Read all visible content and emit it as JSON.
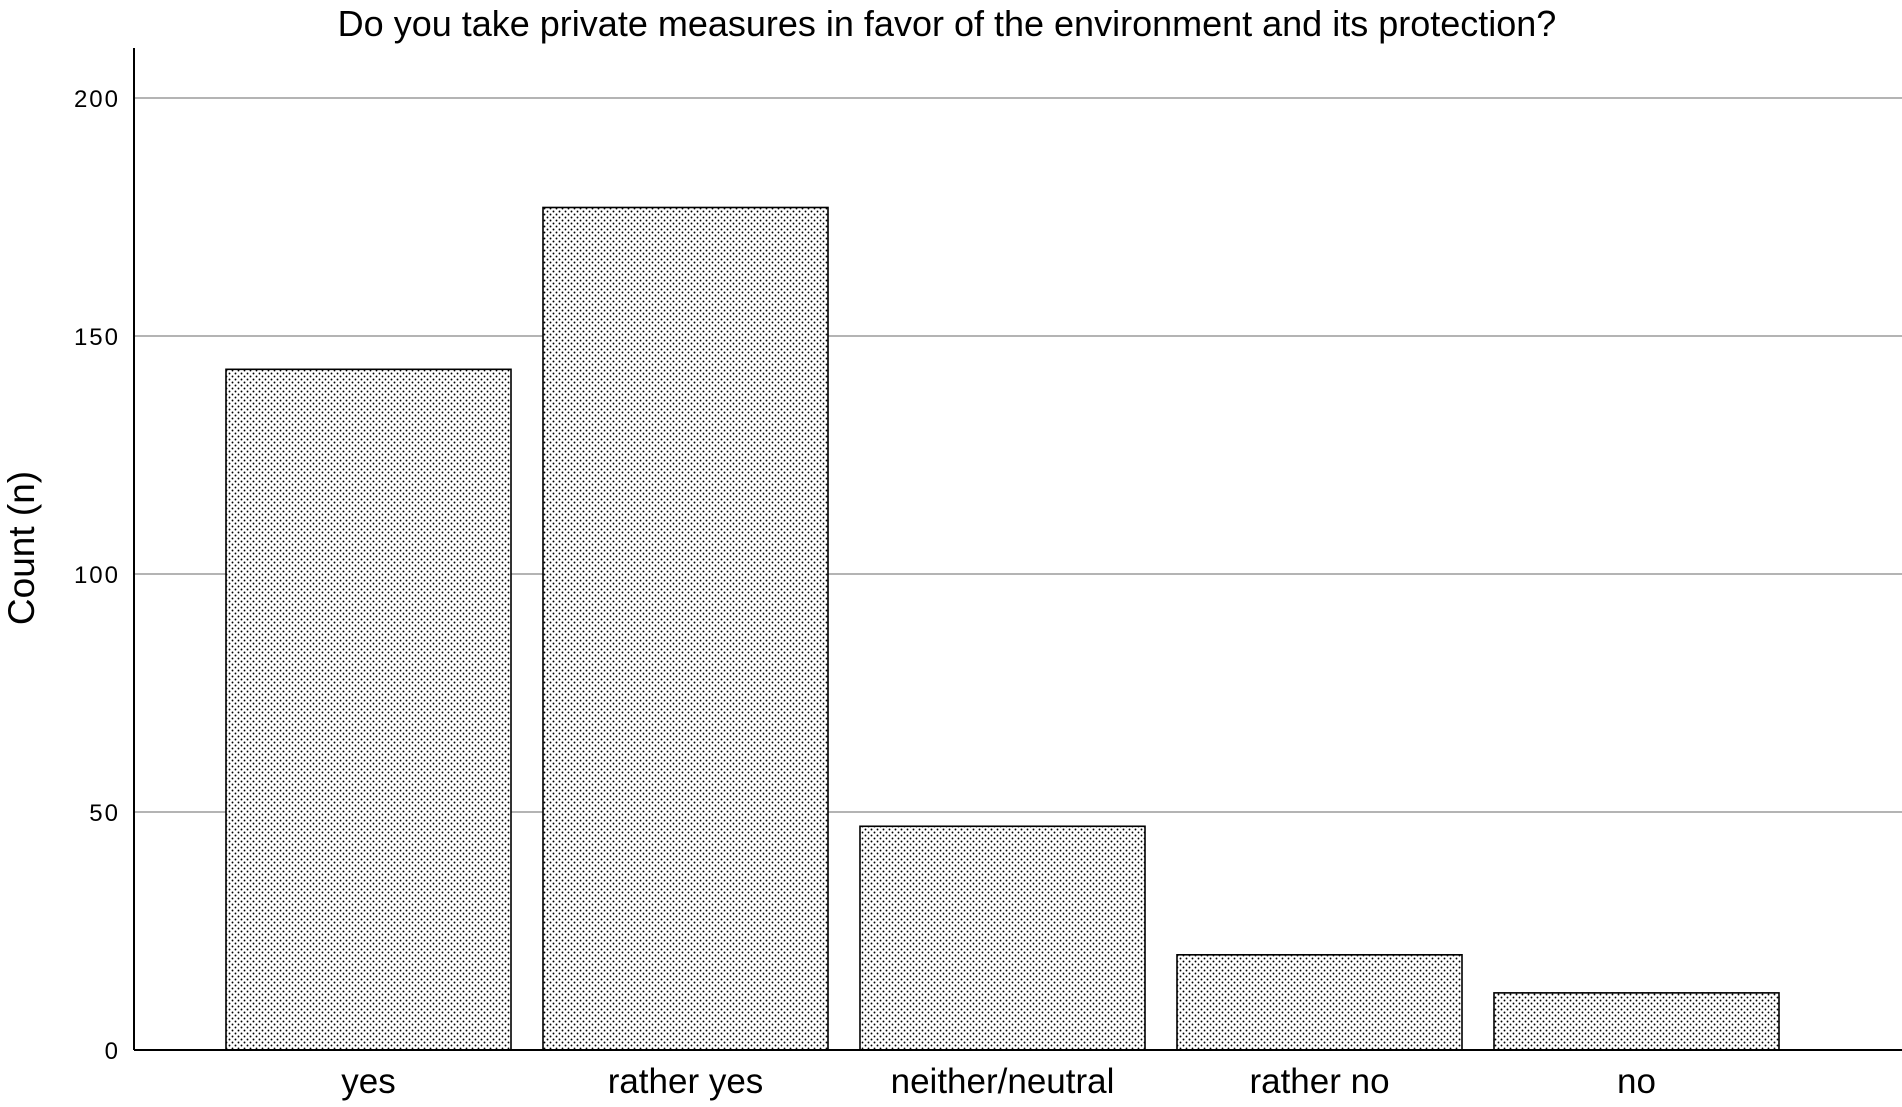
{
  "chart_data": {
    "type": "bar",
    "title": "Do you take private measures in favor of the environment and its protection?",
    "xlabel": "",
    "ylabel": "Count (n)",
    "categories": [
      "yes",
      "rather yes",
      "neither/neutral",
      "rather no",
      "no"
    ],
    "values": [
      143,
      177,
      47,
      20,
      12
    ],
    "ylim": [
      0,
      210
    ],
    "yticks": [
      0,
      50,
      100,
      150,
      200
    ],
    "grid": true,
    "gridlines": "horizontal",
    "legend": "none",
    "bar_fill": "dotted pattern",
    "colors": {
      "bar_background": "#ffffff",
      "bar_dots": "#000000",
      "bar_outline": "#000000",
      "gridline": "#b4b4b4",
      "axis": "#000000"
    }
  }
}
